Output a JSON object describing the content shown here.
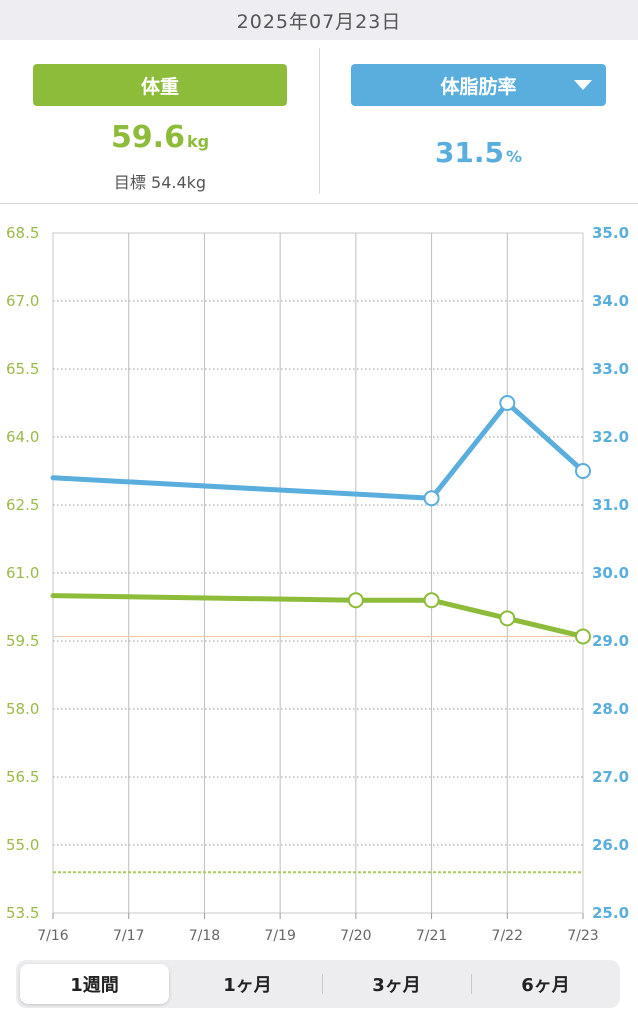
{
  "header": {
    "date": "2025年07月23日"
  },
  "weight": {
    "label": "体重",
    "value": "59.6",
    "unit": "kg",
    "goal": "目標 54.4kg",
    "color": "#8dbb3a"
  },
  "fat": {
    "label": "体脂肪率",
    "value": "31.5",
    "unit": "%",
    "color": "#5aaede"
  },
  "chart_data": {
    "type": "line",
    "x": [
      "7/16",
      "7/17",
      "7/18",
      "7/19",
      "7/20",
      "7/21",
      "7/22",
      "7/23"
    ],
    "y_left": {
      "ticks": [
        "68.5",
        "67.0",
        "65.5",
        "64.0",
        "62.5",
        "61.0",
        "59.5",
        "58.0",
        "56.5",
        "55.0",
        "53.5"
      ],
      "range": [
        53.5,
        68.5
      ]
    },
    "y_right": {
      "ticks": [
        "35.0",
        "34.0",
        "33.0",
        "32.0",
        "31.0",
        "30.0",
        "29.0",
        "28.0",
        "27.0",
        "26.0",
        "25.0"
      ],
      "range": [
        25.0,
        35.0
      ]
    },
    "goal_line": 54.4,
    "series": [
      {
        "axis": "left",
        "color": "#8dbb3a",
        "x_start": 60.5,
        "points": [
          {
            "x": "7/20",
            "y": 60.4
          },
          {
            "x": "7/21",
            "y": 60.4
          },
          {
            "x": "7/22",
            "y": 60.0
          },
          {
            "x": "7/23",
            "y": 59.6
          }
        ]
      },
      {
        "axis": "right",
        "color": "#5aaede",
        "x_start": 31.4,
        "points": [
          {
            "x": "7/21",
            "y": 31.1
          },
          {
            "x": "7/22",
            "y": 32.5
          },
          {
            "x": "7/23",
            "y": 31.5
          }
        ]
      }
    ],
    "grid": true
  },
  "tabs": [
    {
      "label": "1週間",
      "active": true
    },
    {
      "label": "1ヶ月",
      "active": false
    },
    {
      "label": "3ヶ月",
      "active": false
    },
    {
      "label": "6ヶ月",
      "active": false
    }
  ]
}
